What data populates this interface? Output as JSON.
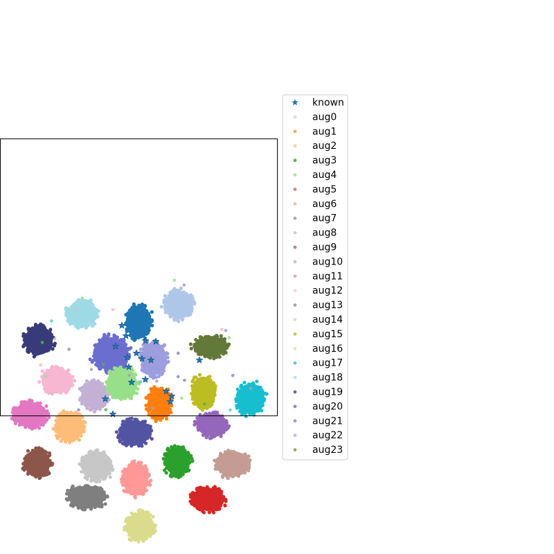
{
  "chart_data": {
    "type": "scatter",
    "title": "",
    "xlabel": "",
    "ylabel": "",
    "xlim": [
      0,
      400
    ],
    "ylim": [
      0,
      400
    ],
    "axis_ticks": false,
    "grid": false,
    "legend_position": "right",
    "series": [
      {
        "name": "known",
        "marker": "star",
        "color": "#1f77b4",
        "points": [
          [
            205,
            318
          ],
          [
            190,
            352
          ],
          [
            240,
            365
          ],
          [
            248,
            372
          ],
          [
            210,
            292
          ],
          [
            182,
            285
          ],
          [
            176,
            270
          ],
          [
            167,
            300
          ],
          [
            152,
            376
          ],
          [
            163,
            398
          ],
          [
            288,
            320
          ],
          [
            186,
            330
          ],
          [
            225,
            293
          ],
          [
            210,
            348
          ],
          [
            218,
            320
          ],
          [
            246,
            380
          ],
          [
            197,
            310
          ],
          [
            184,
            316
          ]
        ]
      },
      {
        "name": "aug0",
        "marker": "dot",
        "color": "#d9dde6",
        "clusters": []
      },
      {
        "name": "aug1",
        "marker": "dot",
        "color": "#ffa94d",
        "clusters": [
          {
            "cx": 230,
            "cy": 382,
            "rx": 18,
            "ry": 24,
            "alpha": 1
          }
        ]
      },
      {
        "name": "aug2",
        "marker": "dot",
        "color": "#ffd39b",
        "clusters": [
          {
            "cx": 100,
            "cy": 416,
            "rx": 22,
            "ry": 22,
            "alpha": 1
          }
        ]
      },
      {
        "name": "aug3",
        "marker": "dot",
        "color": "#55b255",
        "clusters": [
          {
            "cx": 256,
            "cy": 466,
            "rx": 20,
            "ry": 22,
            "alpha": 1
          }
        ]
      },
      {
        "name": "aug4",
        "marker": "dot",
        "color": "#b5e0a5",
        "clusters": [
          {
            "cx": 176,
            "cy": 354,
            "rx": 24,
            "ry": 24,
            "alpha": 1
          }
        ]
      },
      {
        "name": "aug5",
        "marker": "dot",
        "color": "#e47f7f",
        "clusters": [
          {
            "cx": 300,
            "cy": 521,
            "rx": 26,
            "ry": 18,
            "alpha": 1
          }
        ]
      },
      {
        "name": "aug6",
        "marker": "dot",
        "color": "#ffbcb8",
        "clusters": [
          {
            "cx": 196,
            "cy": 492,
            "rx": 20,
            "ry": 26,
            "alpha": 1
          }
        ]
      },
      {
        "name": "aug7",
        "marker": "dot",
        "color": "#b3a0d6",
        "clusters": [
          {
            "cx": 306,
            "cy": 413,
            "rx": 24,
            "ry": 18,
            "alpha": 1
          }
        ]
      },
      {
        "name": "aug8",
        "marker": "dot",
        "color": "#cccde4",
        "clusters": [
          {
            "cx": 222,
            "cy": 318,
            "rx": 20,
            "ry": 26,
            "alpha": 1
          }
        ]
      },
      {
        "name": "aug9",
        "marker": "dot",
        "color": "#b08a84",
        "clusters": [
          {
            "cx": 336,
            "cy": 470,
            "rx": 26,
            "ry": 20,
            "alpha": 1
          }
        ]
      },
      {
        "name": "aug10",
        "marker": "dot",
        "color": "#c8c8c8",
        "clusters": [
          {
            "cx": 140,
            "cy": 472,
            "rx": 24,
            "ry": 22,
            "alpha": 1
          }
        ]
      },
      {
        "name": "aug11",
        "marker": "dot",
        "color": "#eda7d3",
        "clusters": [
          {
            "cx": 82,
            "cy": 350,
            "rx": 24,
            "ry": 20,
            "alpha": 1
          }
        ]
      },
      {
        "name": "aug12",
        "marker": "dot",
        "color": "#f7d3e2",
        "clusters": [
          {
            "cx": 136,
            "cy": 370,
            "rx": 20,
            "ry": 22,
            "alpha": 1
          }
        ]
      },
      {
        "name": "aug13",
        "marker": "dot",
        "color": "#a6a6a6",
        "clusters": [
          {
            "cx": 125,
            "cy": 518,
            "rx": 28,
            "ry": 18,
            "alpha": 1
          }
        ]
      },
      {
        "name": "aug14",
        "marker": "dot",
        "color": "#dcdcdc",
        "clusters": []
      },
      {
        "name": "aug15",
        "marker": "dot",
        "color": "#cccc5c",
        "clusters": [
          {
            "cx": 293,
            "cy": 366,
            "rx": 18,
            "ry": 24,
            "alpha": 1
          }
        ]
      },
      {
        "name": "aug16",
        "marker": "dot",
        "color": "#e6e6a8",
        "clusters": [
          {
            "cx": 202,
            "cy": 560,
            "rx": 22,
            "ry": 22,
            "alpha": 1
          }
        ]
      },
      {
        "name": "aug17",
        "marker": "dot",
        "color": "#5ec9d6",
        "clusters": [
          {
            "cx": 362,
            "cy": 376,
            "rx": 22,
            "ry": 24,
            "alpha": 1
          }
        ]
      },
      {
        "name": "aug18",
        "marker": "dot",
        "color": "#b4e2ec",
        "clusters": [
          {
            "cx": 119,
            "cy": 253,
            "rx": 24,
            "ry": 20,
            "alpha": 1
          }
        ]
      },
      {
        "name": "aug19",
        "marker": "dot",
        "color": "#6a6a9c",
        "clusters": [
          {
            "cx": 56,
            "cy": 292,
            "rx": 22,
            "ry": 22,
            "alpha": 1
          }
        ]
      },
      {
        "name": "aug20",
        "marker": "dot",
        "color": "#8c8cc4",
        "clusters": [
          {
            "cx": 194,
            "cy": 425,
            "rx": 24,
            "ry": 20,
            "alpha": 1
          }
        ]
      },
      {
        "name": "aug21",
        "marker": "dot",
        "color": "#9b9be6",
        "clusters": [
          {
            "cx": 160,
            "cy": 311,
            "rx": 28,
            "ry": 26,
            "alpha": 1
          }
        ]
      },
      {
        "name": "aug22",
        "marker": "dot",
        "color": "#c5bee5",
        "clusters": [
          {
            "cx": 258,
            "cy": 240,
            "rx": 22,
            "ry": 22,
            "alpha": 1
          }
        ]
      },
      {
        "name": "aug23",
        "marker": "dot",
        "color": "#a3a36a",
        "clusters": [
          {
            "cx": 304,
            "cy": 300,
            "rx": 26,
            "ry": 16,
            "alpha": 1
          }
        ]
      }
    ],
    "unlabeled_clusters": [
      {
        "color": "#1f77b4",
        "cx": 200,
        "cy": 265,
        "rx": 20,
        "ry": 26
      },
      {
        "color": "#aec7e8",
        "cx": 258,
        "cy": 240,
        "rx": 22,
        "ry": 22
      },
      {
        "color": "#9edae5",
        "cx": 119,
        "cy": 253,
        "rx": 24,
        "ry": 20
      },
      {
        "color": "#393b79",
        "cx": 56,
        "cy": 292,
        "rx": 22,
        "ry": 22
      },
      {
        "color": "#6b6ecf",
        "cx": 160,
        "cy": 311,
        "rx": 28,
        "ry": 26
      },
      {
        "color": "#9c9ede",
        "cx": 222,
        "cy": 318,
        "rx": 20,
        "ry": 26
      },
      {
        "color": "#637939",
        "cx": 304,
        "cy": 300,
        "rx": 26,
        "ry": 16
      },
      {
        "color": "#f7b6d2",
        "cx": 82,
        "cy": 350,
        "rx": 24,
        "ry": 20
      },
      {
        "color": "#c5b0d5",
        "cx": 136,
        "cy": 370,
        "rx": 20,
        "ry": 22
      },
      {
        "color": "#98df8a",
        "cx": 176,
        "cy": 354,
        "rx": 24,
        "ry": 24
      },
      {
        "color": "#ff7f0e",
        "cx": 230,
        "cy": 382,
        "rx": 18,
        "ry": 24
      },
      {
        "color": "#bcbd22",
        "cx": 293,
        "cy": 366,
        "rx": 18,
        "ry": 24
      },
      {
        "color": "#17becf",
        "cx": 362,
        "cy": 376,
        "rx": 22,
        "ry": 24
      },
      {
        "color": "#e377c2",
        "cx": 44,
        "cy": 399,
        "rx": 26,
        "ry": 20
      },
      {
        "color": "#ffbb78",
        "cx": 100,
        "cy": 416,
        "rx": 22,
        "ry": 22
      },
      {
        "color": "#5254a3",
        "cx": 194,
        "cy": 425,
        "rx": 24,
        "ry": 20
      },
      {
        "color": "#9467bd",
        "cx": 306,
        "cy": 413,
        "rx": 24,
        "ry": 18
      },
      {
        "color": "#8c564b",
        "cx": 54,
        "cy": 469,
        "rx": 20,
        "ry": 22
      },
      {
        "color": "#c7c7c7",
        "cx": 140,
        "cy": 472,
        "rx": 24,
        "ry": 22
      },
      {
        "color": "#2ca02c",
        "cx": 256,
        "cy": 466,
        "rx": 20,
        "ry": 22
      },
      {
        "color": "#c49c94",
        "cx": 336,
        "cy": 470,
        "rx": 26,
        "ry": 20
      },
      {
        "color": "#ff9896",
        "cx": 196,
        "cy": 492,
        "rx": 20,
        "ry": 26
      },
      {
        "color": "#7f7f7f",
        "cx": 125,
        "cy": 518,
        "rx": 28,
        "ry": 18
      },
      {
        "color": "#d62728",
        "cx": 300,
        "cy": 521,
        "rx": 26,
        "ry": 18
      },
      {
        "color": "#dbdb8d",
        "cx": 202,
        "cy": 560,
        "rx": 22,
        "ry": 22
      }
    ]
  }
}
